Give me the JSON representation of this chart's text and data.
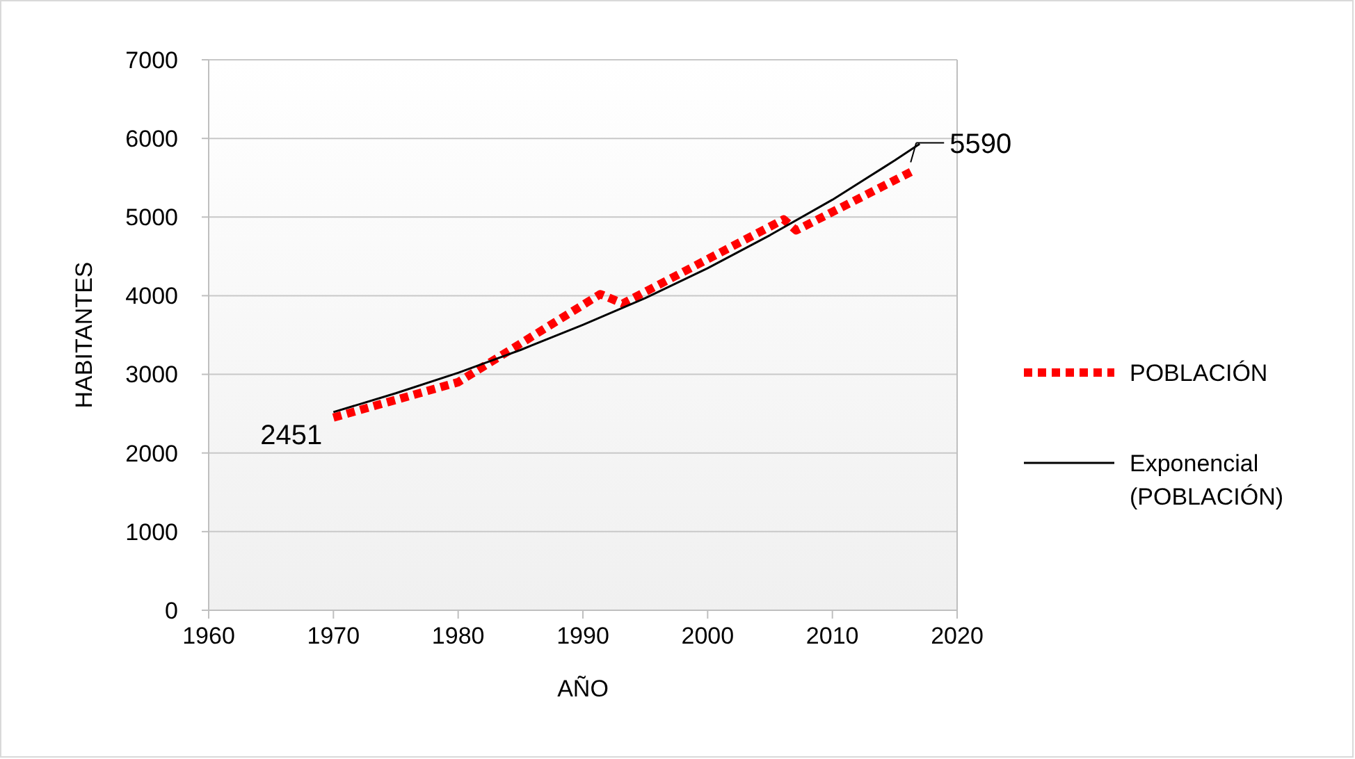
{
  "chart_data": {
    "type": "line",
    "xlabel": "AÑO",
    "ylabel": "HABITANTES",
    "xlim": [
      1960,
      2020
    ],
    "xticks": [
      1960,
      1970,
      1980,
      1990,
      2000,
      2010,
      2020
    ],
    "ylim": [
      0,
      7000
    ],
    "yticks": [
      0,
      1000,
      2000,
      3000,
      4000,
      5000,
      6000,
      7000
    ],
    "grid": "y",
    "legend": "right",
    "series": [
      {
        "name": "POBLACIÓN",
        "color": "#ff0000",
        "line_style": "dotted",
        "x": [
          1970,
          1980,
          1991.4,
          1993.2,
          2006.1,
          2007.1,
          2016.5
        ],
        "values": [
          2451,
          2900,
          4020,
          3900,
          4970,
          4830,
          5590
        ]
      },
      {
        "name": "Exponencial (POBLACIÓN)",
        "color": "#000000",
        "line_style": "solid",
        "x": [
          1970,
          1975,
          1980,
          1985,
          1990,
          1995,
          2000,
          2005,
          2010,
          2015,
          2017
        ],
        "values": [
          2520,
          2760,
          3020,
          3310,
          3630,
          3970,
          4350,
          4770,
          5220,
          5720,
          5930
        ]
      }
    ],
    "annotations": [
      {
        "text": "2451",
        "x": 1970,
        "y": 2451
      },
      {
        "text": "5590",
        "x": 2016.5,
        "y": 5590
      }
    ]
  }
}
